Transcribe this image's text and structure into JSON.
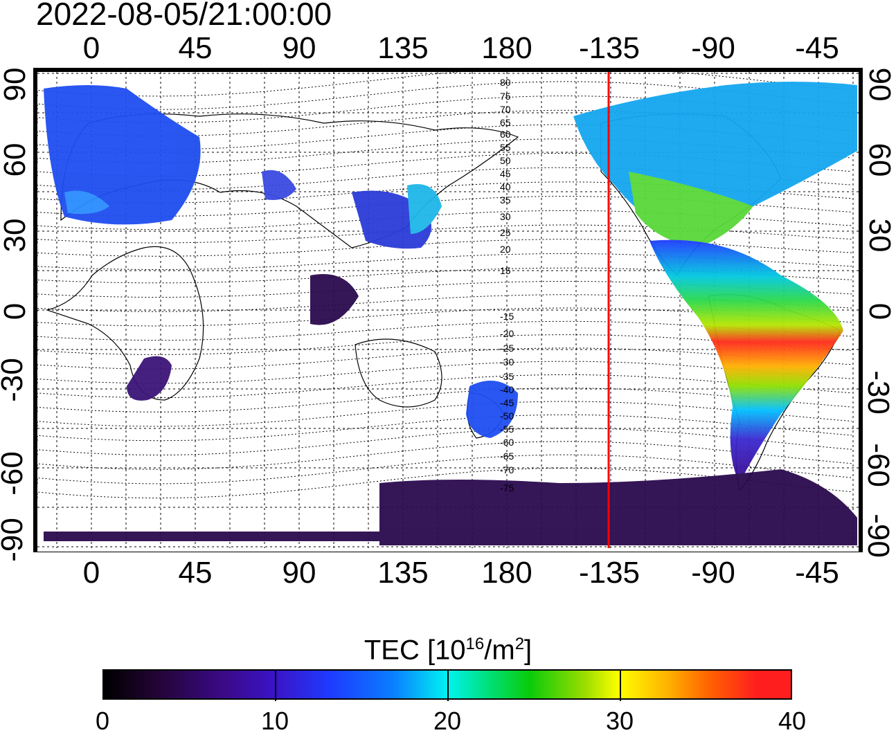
{
  "timestamp": "2022-08-05/21:00:00",
  "longitude_ticks": [
    "0",
    "45",
    "90",
    "135",
    "180",
    "-135",
    "-90",
    "-45"
  ],
  "latitude_ticks": [
    "90",
    "60",
    "30",
    "0",
    "-30",
    "-60",
    "-90"
  ],
  "contour_labels": [
    "80",
    "75",
    "70",
    "65",
    "60",
    "55",
    "50",
    "45",
    "40",
    "35",
    "30",
    "25",
    "20",
    "15",
    "-15",
    "-20",
    "-25",
    "-30",
    "-35",
    "-40",
    "-45",
    "-50",
    "-55",
    "-60",
    "-65",
    "-70",
    "-75"
  ],
  "colorbar": {
    "title_prefix": "TEC  [10",
    "title_exp1": "16",
    "title_mid": "/m",
    "title_exp2": "2",
    "title_suffix": "]",
    "ticks": [
      "0",
      "10",
      "20",
      "30",
      "40"
    ],
    "range": [
      0,
      40
    ]
  },
  "marker_longitude": -135,
  "colors": {
    "marker_line": "#ff0000",
    "grid": "#000000",
    "coastline": "#000000"
  }
}
